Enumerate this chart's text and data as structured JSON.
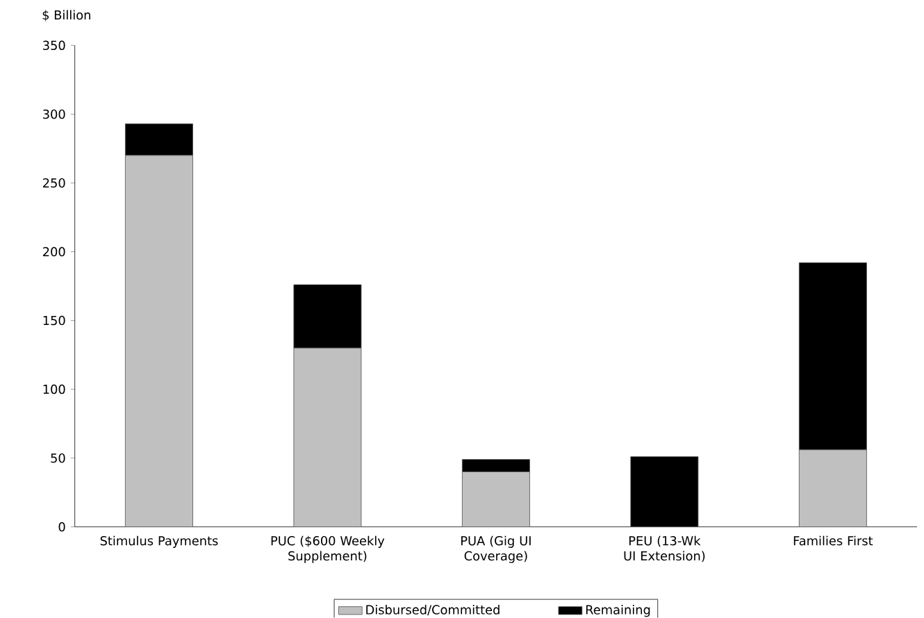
{
  "chart_data": {
    "type": "bar",
    "stacked": true,
    "ylabel": "$ Billion",
    "categories": [
      "Stimulus Payments",
      "PUC ($600 Weekly Supplement)",
      "PUA (Gig UI Coverage)",
      "PEU (13-Wk UI Extension)",
      "Families First"
    ],
    "series": [
      {
        "name": "Disbursed/Committed",
        "color": "#c0c0c0",
        "values": [
          270,
          130,
          40,
          0,
          56
        ]
      },
      {
        "name": "Remaining",
        "color": "#000000",
        "values": [
          23,
          46,
          9,
          51,
          136
        ]
      }
    ],
    "ylim": [
      0,
      350
    ],
    "yticks": [
      0,
      50,
      100,
      150,
      200,
      250,
      300,
      350
    ],
    "legend": "bottom"
  }
}
